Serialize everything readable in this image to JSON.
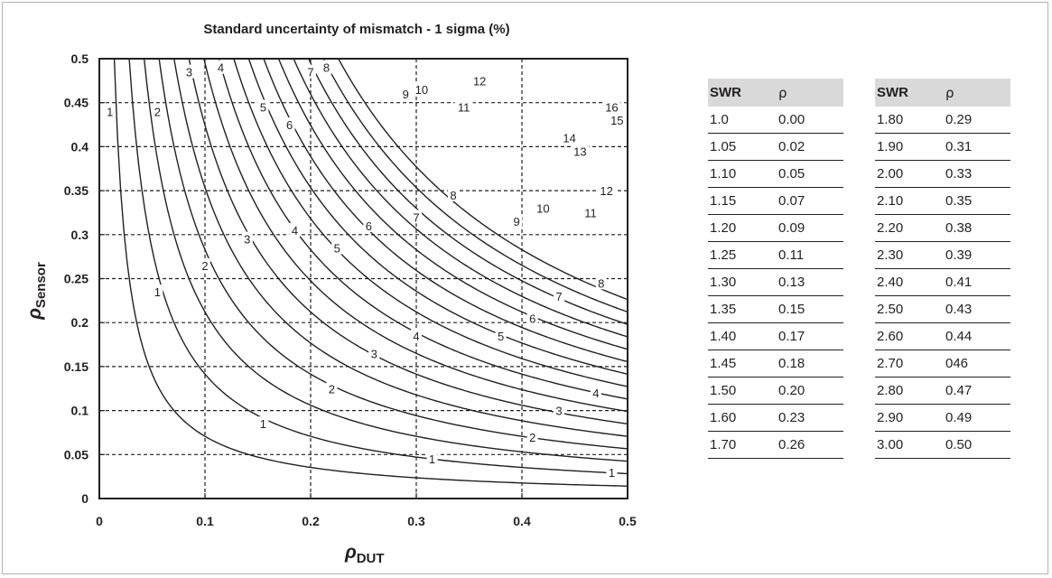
{
  "chart_data": {
    "type": "line",
    "title": "Standard uncertainty of mismatch - 1 sigma (%)",
    "xlabel": {
      "var": "ρ",
      "sub": "DUT"
    },
    "ylabel": {
      "var": "ρ",
      "sub": "Sensor"
    },
    "xlim": [
      0,
      0.5
    ],
    "ylim": [
      0,
      0.5
    ],
    "x_ticks": [
      "0",
      "0.1",
      "0.2",
      "0.3",
      "0.4",
      "0.5"
    ],
    "y_ticks": [
      "0",
      "0.05",
      "0.1",
      "0.15",
      "0.2",
      "0.25",
      "0.3",
      "0.35",
      "0.4",
      "0.45",
      "0.5"
    ],
    "grid": "dashed",
    "contour_levels": [
      1,
      2,
      3,
      4,
      5,
      6,
      7,
      8,
      9,
      10,
      11,
      12,
      13,
      14,
      15,
      16
    ],
    "contour_labels": [
      {
        "text": "1",
        "x": 0.01,
        "y": 0.44
      },
      {
        "text": "1",
        "x": 0.055,
        "y": 0.235
      },
      {
        "text": "1",
        "x": 0.155,
        "y": 0.085
      },
      {
        "text": "1",
        "x": 0.315,
        "y": 0.045
      },
      {
        "text": "1",
        "x": 0.485,
        "y": 0.03
      },
      {
        "text": "2",
        "x": 0.055,
        "y": 0.44
      },
      {
        "text": "2",
        "x": 0.1,
        "y": 0.265
      },
      {
        "text": "2",
        "x": 0.22,
        "y": 0.125
      },
      {
        "text": "2",
        "x": 0.41,
        "y": 0.07
      },
      {
        "text": "3",
        "x": 0.085,
        "y": 0.485
      },
      {
        "text": "3",
        "x": 0.14,
        "y": 0.295
      },
      {
        "text": "3",
        "x": 0.26,
        "y": 0.165
      },
      {
        "text": "3",
        "x": 0.435,
        "y": 0.1
      },
      {
        "text": "4",
        "x": 0.115,
        "y": 0.49
      },
      {
        "text": "4",
        "x": 0.185,
        "y": 0.305
      },
      {
        "text": "4",
        "x": 0.3,
        "y": 0.185
      },
      {
        "text": "4",
        "x": 0.47,
        "y": 0.12
      },
      {
        "text": "5",
        "x": 0.155,
        "y": 0.445
      },
      {
        "text": "5",
        "x": 0.225,
        "y": 0.285
      },
      {
        "text": "5",
        "x": 0.38,
        "y": 0.185
      },
      {
        "text": "6",
        "x": 0.18,
        "y": 0.425
      },
      {
        "text": "6",
        "x": 0.255,
        "y": 0.31
      },
      {
        "text": "6",
        "x": 0.41,
        "y": 0.205
      },
      {
        "text": "7",
        "x": 0.2,
        "y": 0.485
      },
      {
        "text": "7",
        "x": 0.3,
        "y": 0.32
      },
      {
        "text": "7",
        "x": 0.435,
        "y": 0.23
      },
      {
        "text": "8",
        "x": 0.215,
        "y": 0.49
      },
      {
        "text": "8",
        "x": 0.335,
        "y": 0.345
      },
      {
        "text": "8",
        "x": 0.475,
        "y": 0.245
      },
      {
        "text": "9",
        "x": 0.29,
        "y": 0.46
      },
      {
        "text": "9",
        "x": 0.395,
        "y": 0.315
      },
      {
        "text": "10",
        "x": 0.305,
        "y": 0.465
      },
      {
        "text": "10",
        "x": 0.42,
        "y": 0.33
      },
      {
        "text": "11",
        "x": 0.345,
        "y": 0.445
      },
      {
        "text": "11",
        "x": 0.465,
        "y": 0.325
      },
      {
        "text": "12",
        "x": 0.36,
        "y": 0.475
      },
      {
        "text": "12",
        "x": 0.48,
        "y": 0.35
      },
      {
        "text": "13",
        "x": 0.455,
        "y": 0.395
      },
      {
        "text": "14",
        "x": 0.445,
        "y": 0.41
      },
      {
        "text": "15",
        "x": 0.49,
        "y": 0.43
      },
      {
        "text": "16",
        "x": 0.485,
        "y": 0.445
      }
    ]
  },
  "tables": [
    {
      "headers": [
        "SWR",
        "ρ"
      ],
      "rows": [
        [
          "1.0",
          "0.00"
        ],
        [
          "1.05",
          "0.02"
        ],
        [
          "1.10",
          "0.05"
        ],
        [
          "1.15",
          "0.07"
        ],
        [
          "1.20",
          "0.09"
        ],
        [
          "1.25",
          "0.11"
        ],
        [
          "1.30",
          "0.13"
        ],
        [
          "1.35",
          "0.15"
        ],
        [
          "1.40",
          "0.17"
        ],
        [
          "1.45",
          "0.18"
        ],
        [
          "1.50",
          "0.20"
        ],
        [
          "1.60",
          "0.23"
        ],
        [
          "1.70",
          "0.26"
        ]
      ]
    },
    {
      "headers": [
        "SWR",
        "ρ"
      ],
      "rows": [
        [
          "1.80",
          "0.29"
        ],
        [
          "1.90",
          "0.31"
        ],
        [
          "2.00",
          "0.33"
        ],
        [
          "2.10",
          "0.35"
        ],
        [
          "2.20",
          "0.38"
        ],
        [
          "2.30",
          "0.39"
        ],
        [
          "2.40",
          "0.41"
        ],
        [
          "2.50",
          "0.43"
        ],
        [
          "2.60",
          "0.44"
        ],
        [
          "2.70",
          "046"
        ],
        [
          "2.80",
          "0.47"
        ],
        [
          "2.90",
          "0.49"
        ],
        [
          "3.00",
          "0.50"
        ]
      ]
    }
  ]
}
